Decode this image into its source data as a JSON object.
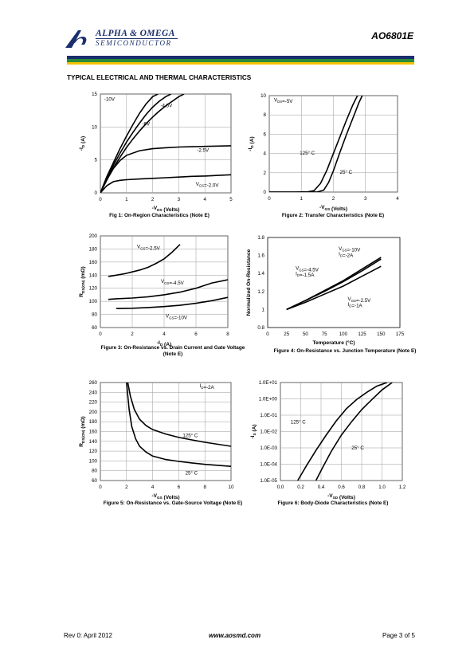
{
  "header": {
    "company_line1": "ALPHA & OMEGA",
    "company_line2": "SEMICONDUCTOR",
    "part_number": "AO6801E",
    "bar_colors": [
      "#1b2f6e",
      "#2a8a3a",
      "#f2c200"
    ]
  },
  "section_title": "TYPICAL ELECTRICAL AND THERMAL CHARACTERISTICS",
  "figures": {
    "fig1": {
      "caption": "Fig 1: On-Region Characteristics (Note E)"
    },
    "fig2": {
      "caption": "Figure 2: Transfer Characteristics (Note E)"
    },
    "fig3": {
      "caption": "Figure 3: On-Resistance vs. Drain Current and Gate Voltage (Note E)"
    },
    "fig4": {
      "caption": "Figure 4: On-Resistance vs. Junction Temperature (Note E)"
    },
    "fig5": {
      "caption": "Figure 5: On-Resistance vs. Gate-Source Voltage (Note E)"
    },
    "fig6": {
      "caption": "Figure 6: Body-Diode Characteristics (Note E)"
    }
  },
  "footer": {
    "revision": "Rev 0: April 2012",
    "website": "www.aosmd.com",
    "page": "Page 3 of 5"
  },
  "chart_data": [
    {
      "id": "fig1",
      "type": "line",
      "xlabel": "-V_DS (Volts)",
      "ylabel": "-I_D (A)",
      "xlim": [
        0,
        5
      ],
      "ylim": [
        0,
        15
      ],
      "xticks": [
        0,
        1,
        2,
        3,
        4,
        5
      ],
      "yticks": [
        0,
        5,
        10,
        15
      ],
      "grid": true,
      "series": [
        {
          "name": "-10V",
          "x": [
            0,
            0.25,
            0.5,
            0.75,
            1,
            1.25,
            1.5,
            1.75,
            2,
            2.2
          ],
          "y": [
            0,
            2.5,
            4.6,
            6.7,
            8.6,
            10.4,
            12.1,
            13.5,
            14.6,
            15
          ]
        },
        {
          "name": "-6V",
          "x": [
            0,
            0.25,
            0.5,
            0.75,
            1,
            1.25,
            1.5,
            1.75,
            2,
            2.25,
            2.5,
            2.7
          ],
          "y": [
            0,
            2.2,
            4.2,
            6.0,
            7.7,
            9.2,
            10.6,
            11.9,
            13.0,
            13.9,
            14.6,
            15
          ]
        },
        {
          "name": "-4.5V",
          "x": [
            0,
            0.25,
            0.5,
            0.75,
            1,
            1.25,
            1.5,
            1.75,
            2,
            2.25,
            2.5,
            2.75,
            3.0,
            3.2
          ],
          "y": [
            0,
            2.0,
            3.8,
            5.4,
            6.9,
            8.2,
            9.4,
            10.5,
            11.5,
            12.4,
            13.2,
            13.9,
            14.6,
            15
          ]
        },
        {
          "name": "-2.5V",
          "x": [
            0,
            0.25,
            0.5,
            0.75,
            1,
            1.5,
            2,
            2.5,
            3,
            3.5,
            4,
            4.5,
            5
          ],
          "y": [
            0,
            2.0,
            3.7,
            4.9,
            5.7,
            6.4,
            6.7,
            6.85,
            6.95,
            7.0,
            7.05,
            7.1,
            7.15
          ]
        },
        {
          "name": "V_GS=-2.0V",
          "x": [
            0,
            0.25,
            0.5,
            0.75,
            1,
            1.5,
            2,
            2.5,
            3,
            3.5,
            4,
            4.5,
            5
          ],
          "y": [
            0,
            1.1,
            1.7,
            1.9,
            2.0,
            2.1,
            2.2,
            2.3,
            2.4,
            2.5,
            2.55,
            2.65,
            2.75
          ]
        }
      ],
      "labels": [
        {
          "text": "-10V",
          "x": 0.15,
          "y": 14
        },
        {
          "text": "-4.5V",
          "x": 2.3,
          "y": 13
        },
        {
          "text": "-6V",
          "x": 1.6,
          "y": 10.2
        },
        {
          "text": "-2.5V",
          "x": 3.7,
          "y": 6.2
        },
        {
          "text": "V_GS=-2.0V",
          "x": 3.65,
          "y": 1.1
        }
      ]
    },
    {
      "id": "fig2",
      "type": "line",
      "xlabel": "-V_GS (Volts)",
      "ylabel": "-I_D (A)",
      "xlim": [
        0,
        4
      ],
      "ylim": [
        0,
        10
      ],
      "xticks": [
        0,
        1,
        2,
        3,
        4
      ],
      "yticks": [
        0,
        2,
        4,
        6,
        8,
        10
      ],
      "grid": true,
      "series": [
        {
          "name": "125°C",
          "x": [
            0,
            0.8,
            1.2,
            1.4,
            1.6,
            1.8,
            2.0,
            2.2,
            2.4,
            2.6,
            2.75
          ],
          "y": [
            0,
            0,
            0.02,
            0.15,
            0.9,
            2.3,
            4.0,
            5.7,
            7.4,
            9.0,
            10
          ]
        },
        {
          "name": "25°C",
          "x": [
            0,
            1.0,
            1.5,
            1.7,
            1.85,
            2.0,
            2.2,
            2.4,
            2.6,
            2.8,
            2.9
          ],
          "y": [
            0,
            0,
            0.01,
            0.2,
            1.0,
            2.2,
            4.1,
            5.9,
            7.6,
            9.3,
            10
          ]
        }
      ],
      "labels": [
        {
          "text": "V_DS=-5V",
          "x": 0.15,
          "y": 9.4
        },
        {
          "text": "125° C",
          "x": 0.95,
          "y": 3.9
        },
        {
          "text": "25° C",
          "x": 2.2,
          "y": 1.9
        }
      ]
    },
    {
      "id": "fig3",
      "type": "line",
      "xlabel": "-I_D (A)",
      "ylabel": "R_DS(ON) (mΩ)",
      "xlim": [
        0,
        8
      ],
      "ylim": [
        60,
        200
      ],
      "xticks": [
        0,
        2,
        4,
        6,
        8
      ],
      "yticks": [
        60,
        80,
        100,
        120,
        140,
        160,
        180,
        200
      ],
      "grid": true,
      "series": [
        {
          "name": "V_GS=-2.5V",
          "x": [
            0.5,
            1,
            1.5,
            2,
            2.5,
            3,
            3.5,
            4,
            4.5,
            5
          ],
          "y": [
            138,
            140,
            142,
            145,
            148,
            152,
            158,
            165,
            175,
            187
          ]
        },
        {
          "name": "V_GS=-4.5V",
          "x": [
            0.5,
            1,
            2,
            3,
            4,
            5,
            6,
            7,
            8
          ],
          "y": [
            103,
            104,
            105,
            107,
            110,
            114,
            120,
            128,
            133
          ]
        },
        {
          "name": "V_GS=-10V",
          "x": [
            1,
            2,
            3,
            4,
            5,
            6,
            7,
            8
          ],
          "y": [
            89,
            89.5,
            90.5,
            92,
            94,
            97,
            101,
            106
          ]
        }
      ],
      "labels": [
        {
          "text": "V_GS=-2.5V",
          "x": 2.3,
          "y": 181
        },
        {
          "text": "V_GS=-4.5V",
          "x": 3.8,
          "y": 128
        },
        {
          "text": "V_GS=-10V",
          "x": 4.1,
          "y": 75
        }
      ]
    },
    {
      "id": "fig4",
      "type": "line",
      "xlabel": "Temperature (°C)",
      "ylabel": "Normalized On-Resistance",
      "xlim": [
        0,
        175
      ],
      "ylim": [
        0.8,
        1.8
      ],
      "xticks": [
        0,
        25,
        50,
        75,
        100,
        125,
        150,
        175
      ],
      "yticks": [
        0.8,
        1,
        1.2,
        1.4,
        1.6,
        1.8
      ],
      "grid": false,
      "series": [
        {
          "name": "V_GS=-10V I_D=-2A",
          "x": [
            25,
            50,
            75,
            100,
            125,
            150
          ],
          "y": [
            1.0,
            1.1,
            1.21,
            1.32,
            1.45,
            1.58
          ]
        },
        {
          "name": "V_GS=-4.5V I_D=-1.5A",
          "x": [
            25,
            50,
            75,
            100,
            125,
            150
          ],
          "y": [
            1.0,
            1.1,
            1.2,
            1.31,
            1.43,
            1.56
          ]
        },
        {
          "name": "V_GS=-2.5V I_D=-1A",
          "x": [
            25,
            50,
            75,
            100,
            125,
            150
          ],
          "y": [
            1.0,
            1.08,
            1.17,
            1.26,
            1.37,
            1.48
          ]
        }
      ],
      "labels": [
        {
          "text": "V_GS=-10V",
          "x": 94,
          "y": 1.66
        },
        {
          "text": "I_D=-2A",
          "x": 94,
          "y": 1.6
        },
        {
          "text": "V_GS=-4.5V",
          "x": 37,
          "y": 1.44
        },
        {
          "text": "I_D=-1.5A",
          "x": 37,
          "y": 1.38
        },
        {
          "text": "V_GS=-2.5V",
          "x": 106,
          "y": 1.1
        },
        {
          "text": "I_D=-1A",
          "x": 106,
          "y": 1.04
        }
      ]
    },
    {
      "id": "fig5",
      "type": "line",
      "xlabel": "-V_GS (Volts)",
      "ylabel": "R_DS(ON) (mΩ)",
      "xlim": [
        0,
        10
      ],
      "ylim": [
        60,
        260
      ],
      "xticks": [
        0,
        2,
        4,
        6,
        8,
        10
      ],
      "yticks": [
        60,
        80,
        100,
        120,
        140,
        160,
        180,
        200,
        220,
        240,
        260
      ],
      "grid": true,
      "series": [
        {
          "name": "125°C",
          "x": [
            2.1,
            2.3,
            2.6,
            3,
            3.5,
            4,
            5,
            6,
            7,
            8,
            9,
            10
          ],
          "y": [
            260,
            232,
            205,
            185,
            172,
            164,
            155,
            148,
            143,
            138,
            134,
            130
          ]
        },
        {
          "name": "25°C",
          "x": [
            2.0,
            2.2,
            2.4,
            2.7,
            3,
            3.5,
            4,
            5,
            6,
            7,
            8,
            9,
            10
          ],
          "y": [
            260,
            205,
            170,
            145,
            130,
            118,
            110,
            103,
            99,
            96,
            93,
            91,
            89
          ]
        }
      ],
      "labels": [
        {
          "text": "I_D=-2A",
          "x": 7.6,
          "y": 250
        },
        {
          "text": "125° C",
          "x": 6.3,
          "y": 149
        },
        {
          "text": "25° C",
          "x": 6.5,
          "y": 72
        }
      ]
    },
    {
      "id": "fig6",
      "type": "line",
      "xlabel": "-V_SD (Volts)",
      "ylabel": "-I_S (A)",
      "xlim": [
        0,
        1.2
      ],
      "ylim": [
        -5,
        1
      ],
      "yscale": "log",
      "xticks": [
        0.0,
        0.2,
        0.4,
        0.6,
        0.8,
        1.0,
        1.2
      ],
      "ytick_labels": [
        "1.0E-05",
        "1.0E-04",
        "1.0E-03",
        "1.0E-02",
        "1.0E-01",
        "1.0E+00",
        "1.0E+01"
      ],
      "grid": true,
      "series": [
        {
          "name": "125°C",
          "x": [
            0.17,
            0.25,
            0.35,
            0.45,
            0.55,
            0.65,
            0.75,
            0.85,
            0.95,
            1.05
          ],
          "y": [
            1e-05,
            7e-05,
            0.0007,
            0.006,
            0.045,
            0.25,
            0.9,
            2.5,
            6.0,
            10
          ]
        },
        {
          "name": "25°C",
          "x": [
            0.35,
            0.42,
            0.5,
            0.6,
            0.7,
            0.8,
            0.9,
            1.0,
            1.1
          ],
          "y": [
            1e-05,
            7e-05,
            0.0006,
            0.006,
            0.04,
            0.22,
            0.9,
            3.5,
            10
          ]
        }
      ],
      "labels": [
        {
          "text": "125° C",
          "x": 0.1,
          "y": 0.03
        },
        {
          "text": "25° C",
          "x": 0.7,
          "y": 0.0008
        }
      ]
    }
  ]
}
